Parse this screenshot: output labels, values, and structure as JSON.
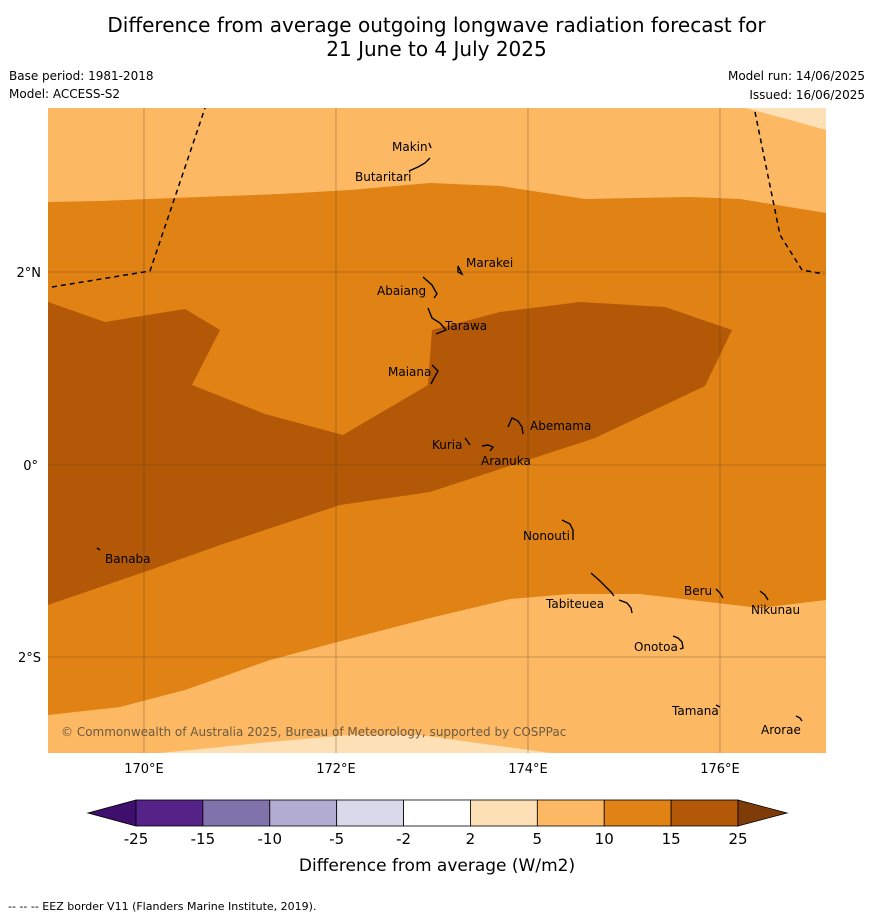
{
  "title_line1": "Difference from average outgoing longwave radiation forecast for",
  "title_line2": "21 June to 4 July 2025",
  "base_period": "Base period: 1981-2018",
  "model": "Model: ACCESS-S2",
  "model_run": "Model run: 14/06/2025",
  "issued": "Issued: 16/06/2025",
  "copyright": "© Commonwealth of Australia 2025, Bureau of Meteorology, supported by COSPPac",
  "footer": "--  --  -- EEZ border V11 (Flanders Marine Institute, 2019).",
  "axes": {
    "x_ticks": [
      "170°E",
      "172°E",
      "174°E",
      "176°E"
    ],
    "y_ticks": [
      "2°N",
      "0°",
      "2°S"
    ]
  },
  "places": [
    "Makin",
    "Butaritari",
    "Marakei",
    "Abaiang",
    "Tarawa",
    "Maiana",
    "Abemama",
    "Kuria",
    "Aranuka",
    "Nonouti",
    "Banaba",
    "Beru",
    "Tabiteuea",
    "Nikunau",
    "Onotoa",
    "Tamana",
    "Arorae"
  ],
  "colorbar": {
    "label": "Difference from average (W/m2)",
    "ticks": [
      "-25",
      "-15",
      "-10",
      "-5",
      "-2",
      "2",
      "5",
      "10",
      "15",
      "25"
    ],
    "colors": [
      "#3f0f6e",
      "#552288",
      "#8073ac",
      "#b2abd2",
      "#d8daeb",
      "#ffffff",
      "#fee0b6",
      "#fdb863",
      "#e08214",
      "#b35806",
      "#7f3b08"
    ]
  }
}
